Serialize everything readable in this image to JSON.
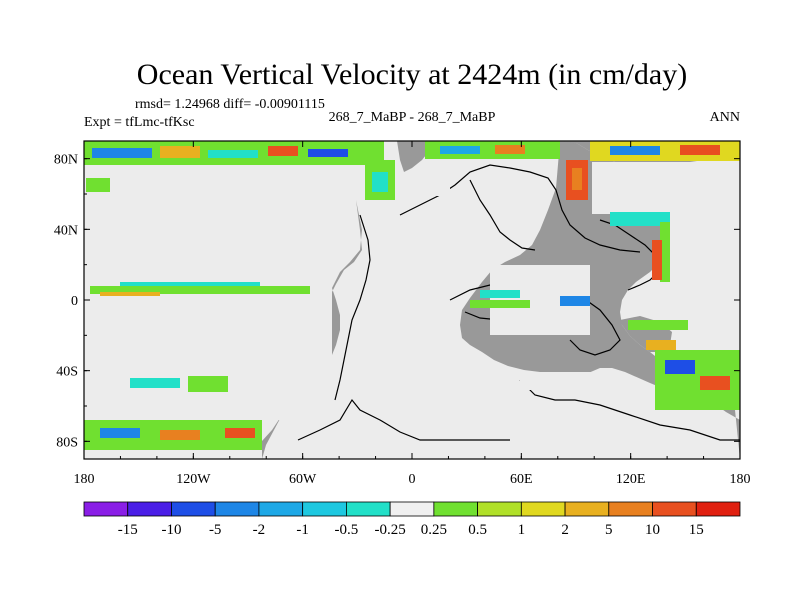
{
  "chart_data": {
    "type": "heatmap",
    "title": "Ocean Vertical Velocity at 2424m (in cm/day)",
    "stats_line": "rmsd= 1.24968 diff= -0.00901115",
    "left_label": "Expt = tfLmc-tfKsc",
    "center_label": "268_7_MaBP - 268_7_MaBP",
    "right_label": "ANN",
    "x_ticks": [
      "180",
      "120W",
      "60W",
      "0",
      "60E",
      "120E",
      "180"
    ],
    "x_tick_values": [
      -180,
      -120,
      -60,
      0,
      60,
      120,
      180
    ],
    "y_ticks": [
      "80N",
      "40N",
      "0",
      "40S",
      "80S"
    ],
    "y_tick_values": [
      80,
      40,
      0,
      -40,
      -80
    ],
    "xlim": [
      -180,
      180
    ],
    "ylim": [
      -90,
      90
    ],
    "colorbar": {
      "labels": [
        "-15",
        "-10",
        "-5",
        "-2",
        "-1",
        "-0.5",
        "-0.25",
        "0.25",
        "0.5",
        "1",
        "2",
        "5",
        "10",
        "15"
      ],
      "colors": [
        "#8a1ee6",
        "#4a1ee6",
        "#1e4ee6",
        "#1e86e6",
        "#1ea8e6",
        "#1ec8e0",
        "#22e0c8",
        "#f0f0f0",
        "#70e030",
        "#b0e028",
        "#e0d820",
        "#e8b020",
        "#e88020",
        "#e85020",
        "#e02010"
      ]
    },
    "colors": {
      "land": "#999999",
      "near_zero": "#ececec",
      "coast": "#000000"
    }
  }
}
